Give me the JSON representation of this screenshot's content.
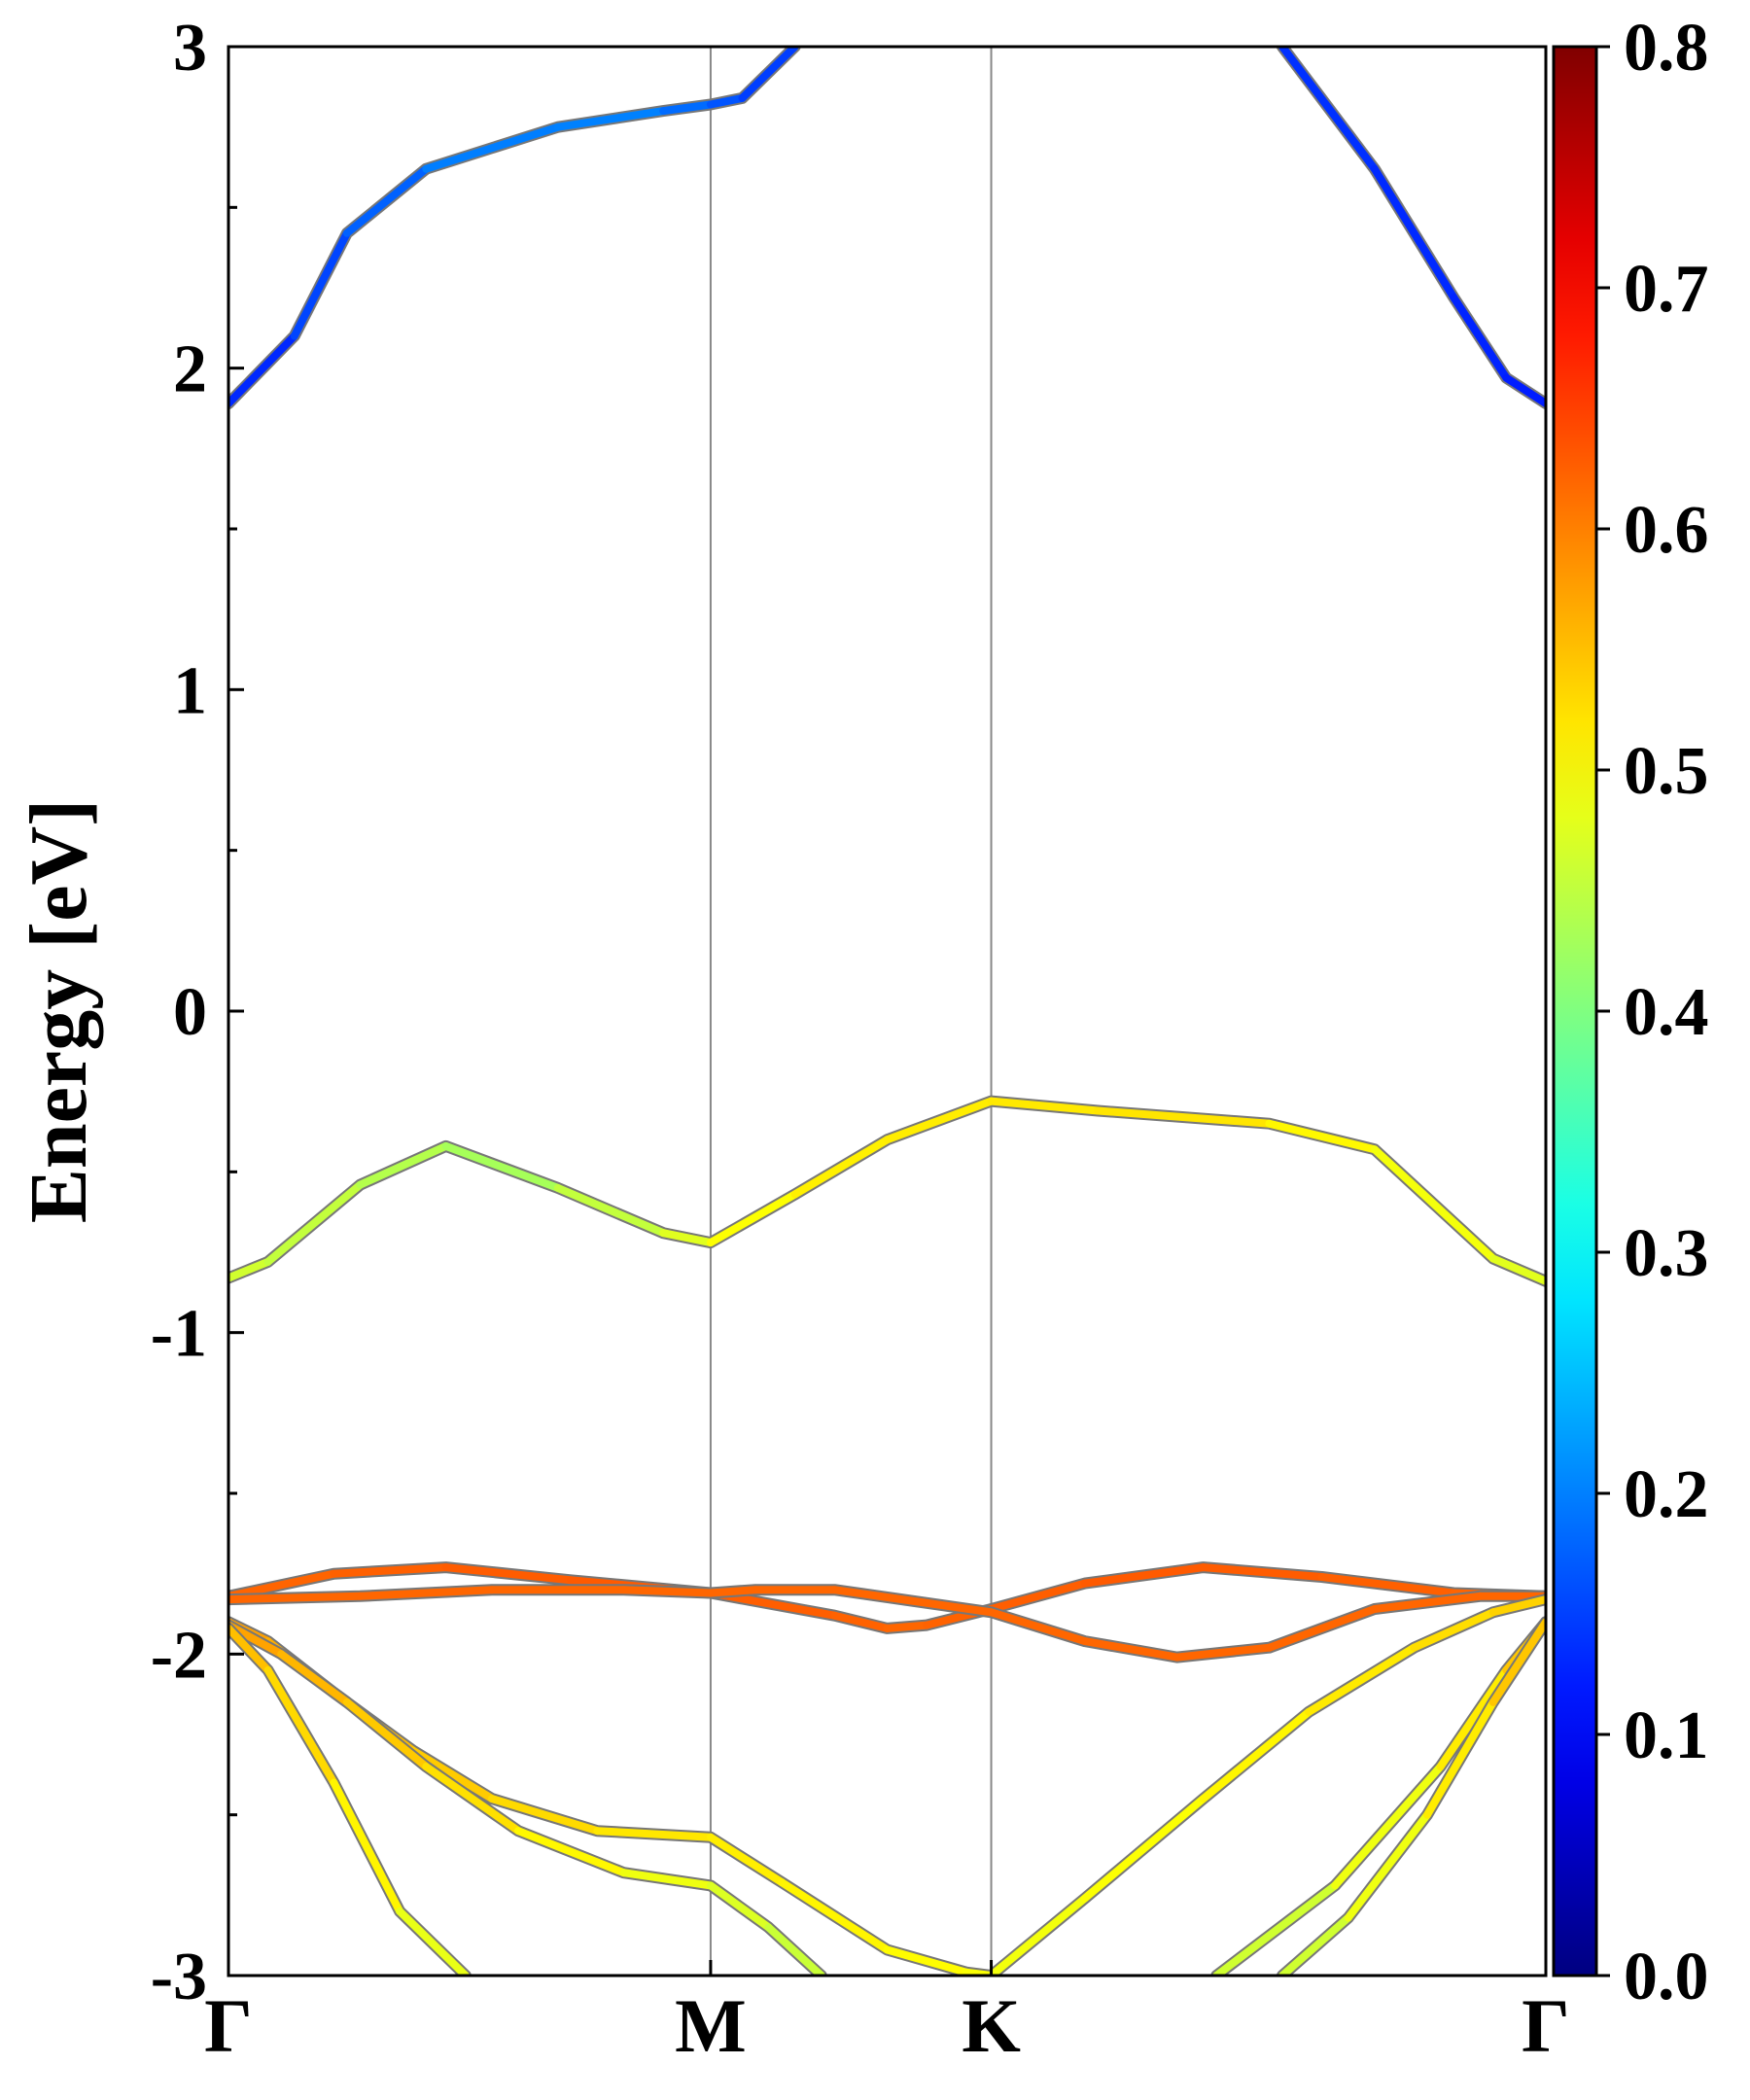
{
  "chart_data": {
    "type": "line",
    "xlabel": "",
    "ylabel": "Energy [eV]",
    "ylim": [
      -3,
      3
    ],
    "y_ticks": [
      "-3",
      "-2",
      "-1",
      "0",
      "1",
      "2",
      "3"
    ],
    "y_minor_step": 0.5,
    "k_points": [
      {
        "label": "Γ",
        "x": 0.0
      },
      {
        "label": "M",
        "x": 0.366
      },
      {
        "label": "K",
        "x": 0.579
      },
      {
        "label": "Γ",
        "x": 1.0
      }
    ],
    "xlim": [
      0,
      1
    ],
    "colorbar": {
      "range": [
        0,
        0.8
      ],
      "ticks": [
        "0.0",
        "0.1",
        "0.2",
        "0.3",
        "0.4",
        "0.5",
        "0.6",
        "0.7",
        "0.8"
      ],
      "colormap": "jet"
    },
    "grid": false,
    "bands": [
      {
        "name": "",
        "weight": [
          0.12,
          0.21,
          0.14
        ],
        "points": [
          [
            0.0,
            1.89
          ],
          [
            0.05,
            2.1
          ],
          [
            0.09,
            2.42
          ],
          [
            0.15,
            2.62
          ],
          [
            0.25,
            2.75
          ],
          [
            0.33,
            2.8
          ],
          [
            0.366,
            2.82
          ],
          [
            0.39,
            2.84
          ],
          [
            0.43,
            3.0
          ]
        ]
      },
      {
        "name": "",
        "weight": [
          0.14,
          0.12
        ],
        "points": [
          [
            0.8,
            3.0
          ],
          [
            0.87,
            2.62
          ],
          [
            0.93,
            2.22
          ],
          [
            0.97,
            1.97
          ],
          [
            1.0,
            1.89
          ]
        ]
      },
      {
        "name": "",
        "weight": [
          0.47,
          0.43,
          0.51,
          0.52,
          0.47
        ],
        "points": [
          [
            0.0,
            -0.83
          ],
          [
            0.03,
            -0.78
          ],
          [
            0.1,
            -0.54
          ],
          [
            0.165,
            -0.42
          ],
          [
            0.25,
            -0.55
          ],
          [
            0.33,
            -0.69
          ],
          [
            0.366,
            -0.72
          ],
          [
            0.43,
            -0.57
          ],
          [
            0.5,
            -0.4
          ],
          [
            0.579,
            -0.28
          ],
          [
            0.66,
            -0.31
          ],
          [
            0.79,
            -0.35
          ],
          [
            0.87,
            -0.43
          ],
          [
            0.96,
            -0.77
          ],
          [
            1.0,
            -0.84
          ]
        ]
      },
      {
        "name": "",
        "weight": [
          0.62,
          0.63,
          0.62,
          0.63,
          0.62
        ],
        "points": [
          [
            0.0,
            -1.82
          ],
          [
            0.08,
            -1.75
          ],
          [
            0.165,
            -1.73
          ],
          [
            0.26,
            -1.77
          ],
          [
            0.366,
            -1.81
          ],
          [
            0.46,
            -1.88
          ],
          [
            0.5,
            -1.92
          ],
          [
            0.53,
            -1.91
          ],
          [
            0.579,
            -1.86
          ],
          [
            0.65,
            -1.78
          ],
          [
            0.74,
            -1.73
          ],
          [
            0.83,
            -1.76
          ],
          [
            0.93,
            -1.81
          ],
          [
            1.0,
            -1.82
          ]
        ]
      },
      {
        "name": "",
        "weight": [
          0.62,
          0.62,
          0.62,
          0.62
        ],
        "points": [
          [
            0.0,
            -1.83
          ],
          [
            0.1,
            -1.82
          ],
          [
            0.2,
            -1.8
          ],
          [
            0.3,
            -1.8
          ],
          [
            0.366,
            -1.81
          ],
          [
            0.4,
            -1.8
          ],
          [
            0.46,
            -1.8
          ],
          [
            0.579,
            -1.87
          ],
          [
            0.65,
            -1.96
          ],
          [
            0.72,
            -2.01
          ],
          [
            0.79,
            -1.98
          ],
          [
            0.87,
            -1.86
          ],
          [
            0.95,
            -1.82
          ],
          [
            1.0,
            -1.82
          ]
        ]
      },
      {
        "name": "",
        "weight": [
          0.58,
          0.52,
          0.49,
          0.54
        ],
        "points": [
          [
            0.0,
            -1.9
          ],
          [
            0.03,
            -1.96
          ],
          [
            0.08,
            -2.12
          ],
          [
            0.14,
            -2.3
          ],
          [
            0.2,
            -2.45
          ],
          [
            0.28,
            -2.55
          ],
          [
            0.366,
            -2.57
          ],
          [
            0.42,
            -2.71
          ],
          [
            0.5,
            -2.92
          ],
          [
            0.56,
            -2.99
          ],
          [
            0.579,
            -3.0
          ],
          [
            0.65,
            -2.76
          ],
          [
            0.74,
            -2.45
          ],
          [
            0.82,
            -2.18
          ],
          [
            0.9,
            -1.98
          ],
          [
            0.96,
            -1.87
          ],
          [
            1.0,
            -1.83
          ]
        ]
      },
      {
        "name": "",
        "weight": [
          0.58,
          0.54,
          0.49,
          0.45
        ],
        "points": [
          [
            0.0,
            -1.91
          ],
          [
            0.04,
            -2.0
          ],
          [
            0.09,
            -2.15
          ],
          [
            0.15,
            -2.35
          ],
          [
            0.22,
            -2.55
          ],
          [
            0.3,
            -2.68
          ],
          [
            0.366,
            -2.72
          ],
          [
            0.41,
            -2.85
          ],
          [
            0.45,
            -3.0
          ]
        ]
      },
      {
        "name": "",
        "weight": [
          0.56,
          0.52,
          0.47
        ],
        "points": [
          [
            0.0,
            -1.92
          ],
          [
            0.03,
            -2.05
          ],
          [
            0.08,
            -2.4
          ],
          [
            0.13,
            -2.8
          ],
          [
            0.18,
            -3.0
          ]
        ]
      },
      {
        "name": "",
        "weight": [
          0.45,
          0.5,
          0.56
        ],
        "points": [
          [
            0.75,
            -3.0
          ],
          [
            0.84,
            -2.72
          ],
          [
            0.92,
            -2.35
          ],
          [
            0.97,
            -2.05
          ],
          [
            1.0,
            -1.9
          ]
        ]
      },
      {
        "name": "",
        "weight": [
          0.45,
          0.5,
          0.56
        ],
        "points": [
          [
            0.8,
            -3.0
          ],
          [
            0.85,
            -2.82
          ],
          [
            0.91,
            -2.5
          ],
          [
            0.96,
            -2.15
          ],
          [
            1.0,
            -1.9
          ]
        ]
      }
    ]
  }
}
